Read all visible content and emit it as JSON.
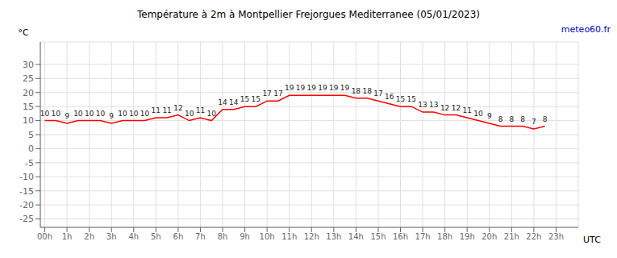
{
  "chart_data": {
    "type": "line",
    "title": "Température à 2m à Montpellier Frejorgues Mediterranee (05/01/2023)",
    "ylabel": "°C",
    "xlabel": "UTC",
    "annotations": [
      {
        "text": "meteo60.fr",
        "color": "#0000cd"
      }
    ],
    "x": [
      0,
      0.5,
      1,
      1.5,
      2,
      2.5,
      3,
      3.5,
      4,
      4.5,
      5,
      5.5,
      6,
      6.5,
      7,
      7.5,
      8,
      8.5,
      9,
      9.5,
      10,
      10.5,
      11,
      11.5,
      12,
      12.5,
      13,
      13.5,
      14,
      14.5,
      15,
      15.5,
      16,
      16.5,
      17,
      17.5,
      18,
      18.5,
      19,
      19.5,
      20,
      20.5,
      21,
      21.5,
      22,
      22.5
    ],
    "values": [
      10,
      10,
      9,
      10,
      10,
      10,
      9,
      10,
      10,
      10,
      11,
      11,
      12,
      10,
      11,
      10,
      14,
      14,
      15,
      15,
      17,
      17,
      19,
      19,
      19,
      19,
      19,
      19,
      18,
      18,
      17,
      16,
      15,
      15,
      13,
      13,
      12,
      12,
      11,
      10,
      9,
      8,
      8,
      8,
      7,
      8
    ],
    "color": "#ff0000",
    "xlim": [
      -0.2,
      24.0
    ],
    "xticks": [
      {
        "value": 0,
        "label": "00h"
      },
      {
        "value": 1,
        "label": "1h"
      },
      {
        "value": 2,
        "label": "2h"
      },
      {
        "value": 3,
        "label": "3h"
      },
      {
        "value": 4,
        "label": "4h"
      },
      {
        "value": 5,
        "label": "5h"
      },
      {
        "value": 6,
        "label": "6h"
      },
      {
        "value": 7,
        "label": "7h"
      },
      {
        "value": 8,
        "label": "8h"
      },
      {
        "value": 9,
        "label": "9h"
      },
      {
        "value": 10,
        "label": "10h"
      },
      {
        "value": 11,
        "label": "11h"
      },
      {
        "value": 12,
        "label": "12h"
      },
      {
        "value": 13,
        "label": "13h"
      },
      {
        "value": 14,
        "label": "14h"
      },
      {
        "value": 15,
        "label": "15h"
      },
      {
        "value": 16,
        "label": "16h"
      },
      {
        "value": 17,
        "label": "17h"
      },
      {
        "value": 18,
        "label": "18h"
      },
      {
        "value": 19,
        "label": "19h"
      },
      {
        "value": 20,
        "label": "20h"
      },
      {
        "value": 21,
        "label": "21h"
      },
      {
        "value": 22,
        "label": "22h"
      },
      {
        "value": 23,
        "label": "23h"
      }
    ],
    "ylim": [
      -28,
      38
    ],
    "yticks": [
      -25,
      -20,
      -15,
      -10,
      -5,
      0,
      5,
      10,
      15,
      20,
      25,
      30
    ],
    "grid": true,
    "data_labels": true
  }
}
